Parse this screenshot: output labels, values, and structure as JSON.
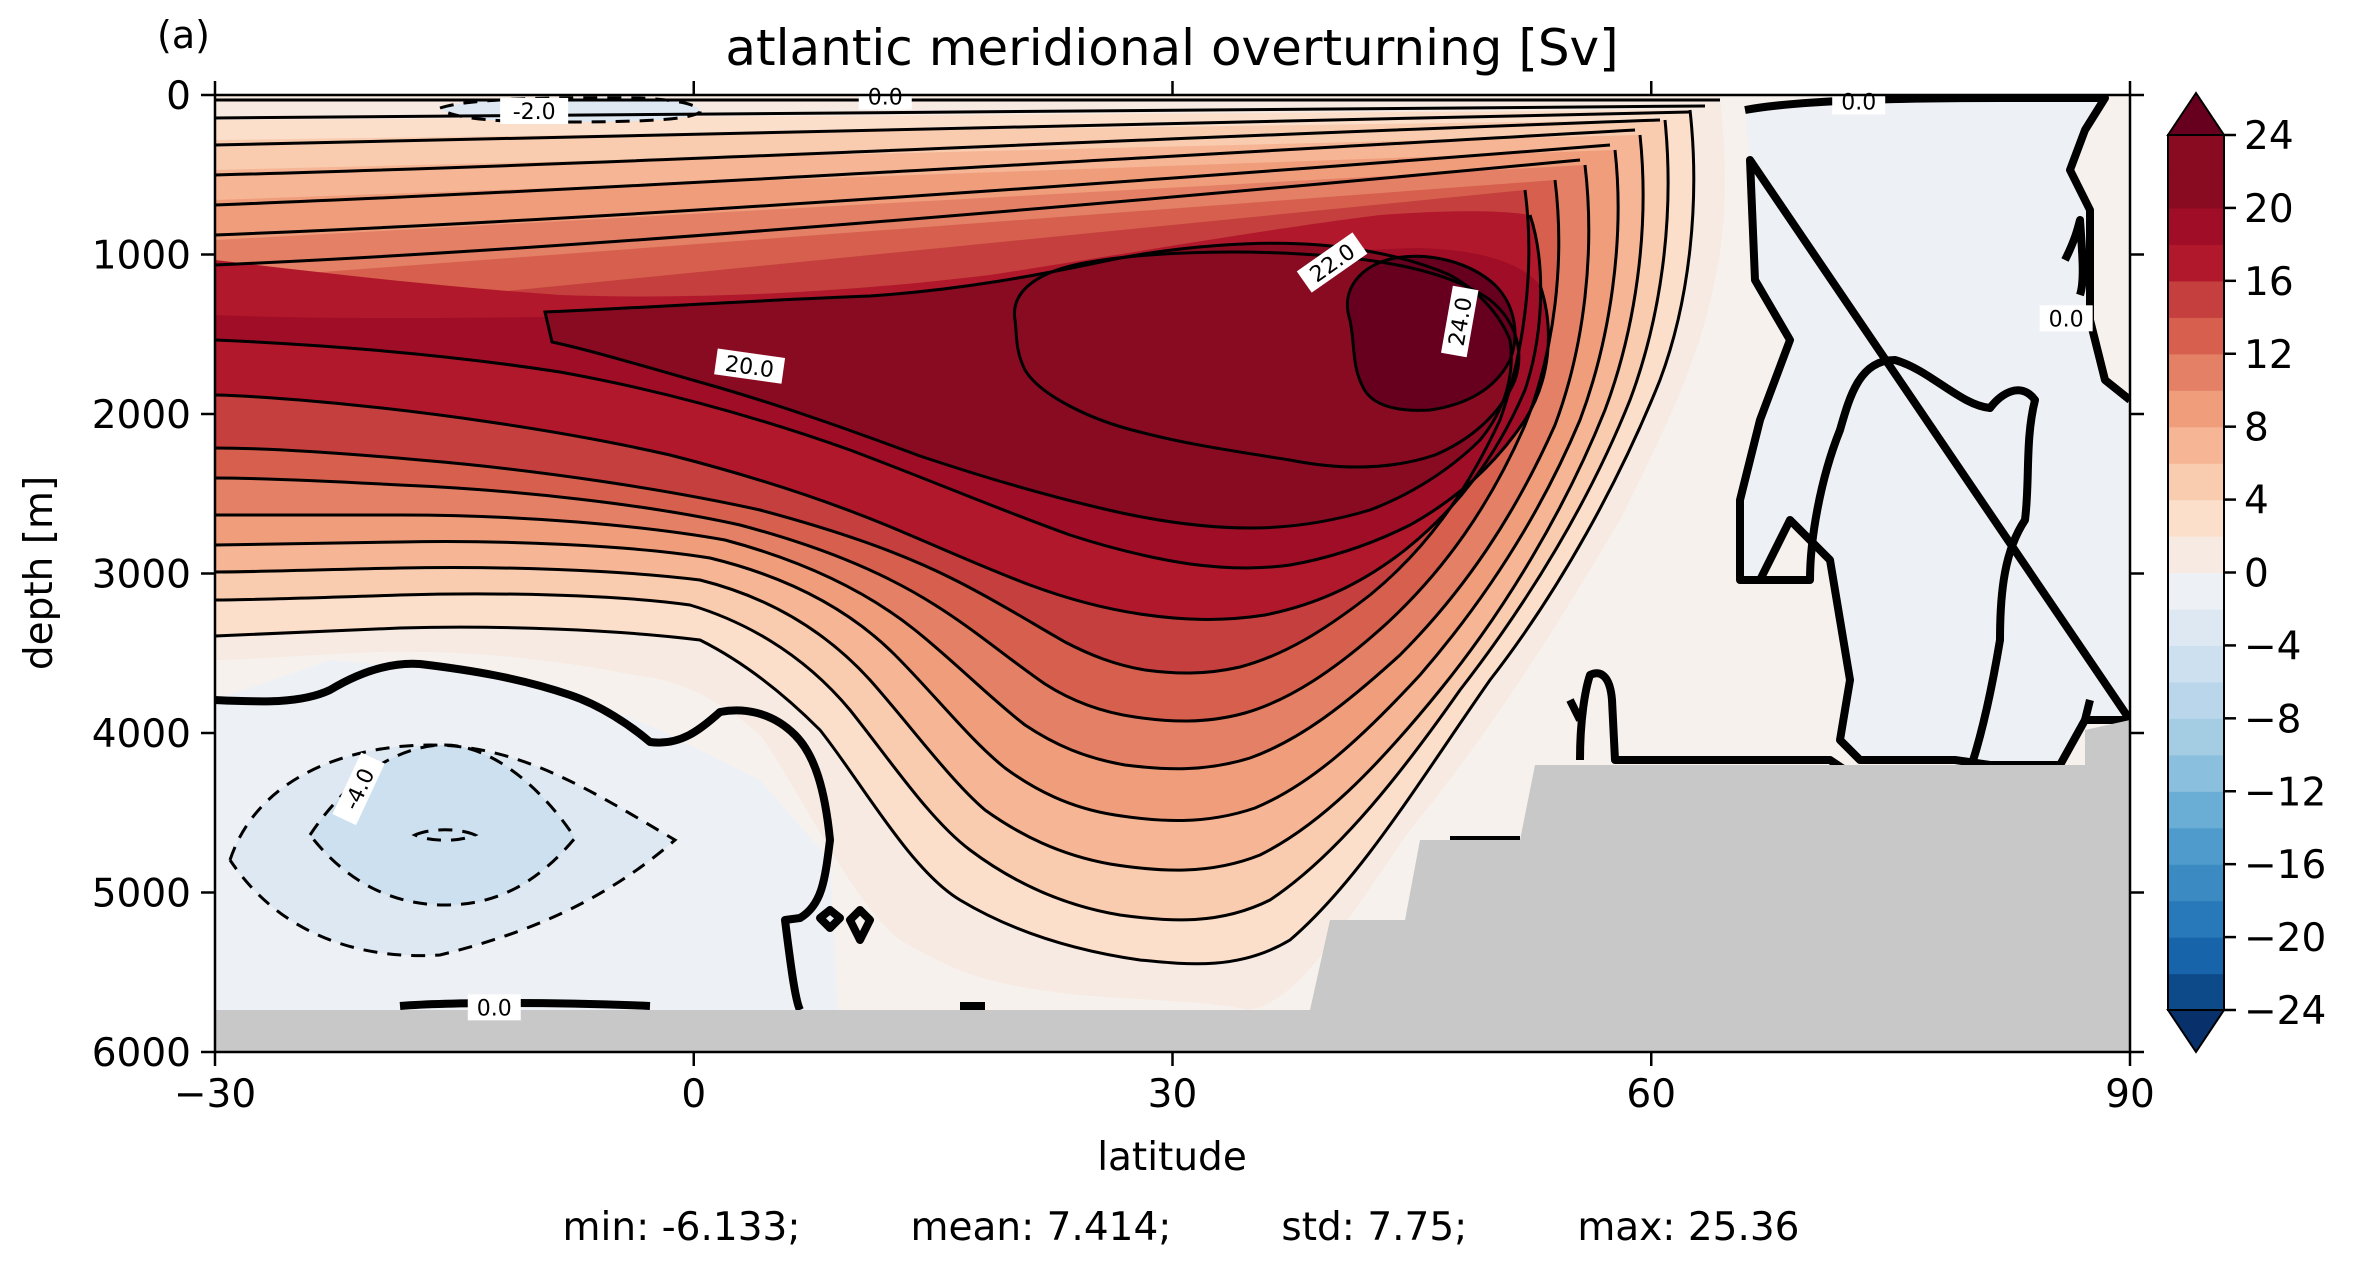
{
  "chart_data": {
    "type": "contour",
    "panel_label": "(a)",
    "title": "atlantic meridional overturning [Sv]",
    "xlabel": "latitude",
    "ylabel": "depth [m]",
    "xlim": [
      -30,
      90
    ],
    "ylim": [
      6000,
      0
    ],
    "xticks": [
      -30,
      0,
      30,
      60,
      90
    ],
    "xtick_labels": [
      "−30",
      "0",
      "30",
      "60",
      "90"
    ],
    "yticks": [
      0,
      1000,
      2000,
      3000,
      4000,
      5000,
      6000
    ],
    "ytick_labels": [
      "0",
      "1000",
      "2000",
      "3000",
      "4000",
      "5000",
      "6000"
    ],
    "contour_levels_step": 2,
    "contour_labels": [
      {
        "text": "-2.0",
        "lat": -10,
        "depth": 100
      },
      {
        "text": "0.0",
        "lat": 12,
        "depth": 10
      },
      {
        "text": "0.0",
        "lat": 73,
        "depth": 40
      },
      {
        "text": "0.0",
        "lat": 86,
        "depth": 1400
      },
      {
        "text": "20.0",
        "lat": 3.5,
        "depth": 1700
      },
      {
        "text": "22.0",
        "lat": 40,
        "depth": 1050
      },
      {
        "text": "24.0",
        "lat": 48,
        "depth": 1420
      },
      {
        "text": "-4.0",
        "lat": -21,
        "depth": 4350
      },
      {
        "text": "0.0",
        "lat": -12.5,
        "depth": 5720
      }
    ],
    "colorbar": {
      "min": -24,
      "max": 24,
      "step": 2,
      "extend": "both",
      "ticks": [
        24,
        20,
        16,
        12,
        8,
        4,
        0,
        -4,
        -8,
        -12,
        -16,
        -20,
        -24
      ],
      "tick_labels": [
        "24",
        "20",
        "16",
        "12",
        "8",
        "4",
        "0",
        "−4",
        "−8",
        "−12",
        "−16",
        "−20",
        "−24"
      ],
      "colors": [
        "#08306b",
        "#0d4a8a",
        "#1764ab",
        "#2879b9",
        "#3b8bc2",
        "#4f9bcb",
        "#6aaed6",
        "#8abfdd",
        "#a4cde4",
        "#bad6ea",
        "#cde0ef",
        "#dde8f2",
        "#edf1f5",
        "#f7eae2",
        "#fbdfcb",
        "#f9cbaf",
        "#f6b594",
        "#f09d7c",
        "#e48066",
        "#d6604d",
        "#c43f3d",
        "#b2182b",
        "#a00d27",
        "#880b22",
        "#67001f"
      ]
    },
    "stats": {
      "min": "min: -6.133;",
      "mean": "mean: 7.414;",
      "std": "std: 7.75;",
      "max": "max: 25.36"
    }
  }
}
